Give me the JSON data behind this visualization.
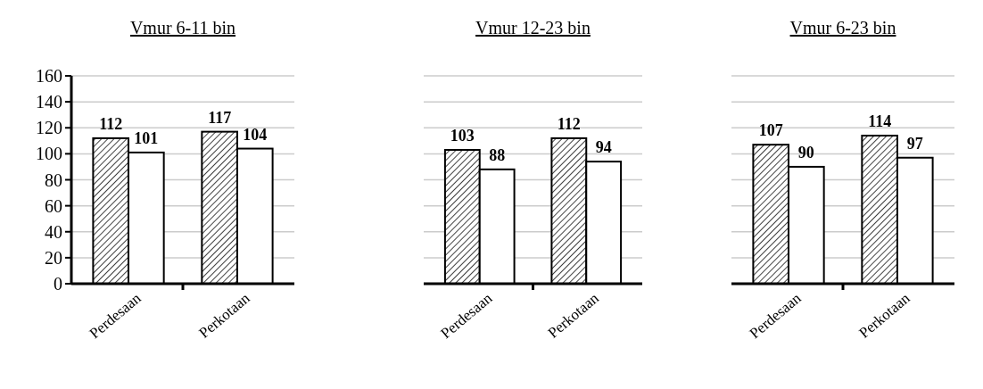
{
  "chart_data": [
    {
      "type": "bar",
      "title": "Vmur 6-11 bin",
      "categories": [
        "Perdesaan",
        "Perkotaan"
      ],
      "series": [
        {
          "color": "#000000",
          "values": [
            112,
            117
          ]
        },
        {
          "color": "#ffffff",
          "values": [
            101,
            104
          ]
        }
      ],
      "ylim": [
        0,
        160
      ],
      "yticks": [
        0,
        20,
        40,
        60,
        80,
        100,
        120,
        140,
        160
      ],
      "grid": "y",
      "data_labels": true
    },
    {
      "type": "bar",
      "title": "Vmur 12-23 bin",
      "categories": [
        "Perdesaan",
        "Perkotaan"
      ],
      "series": [
        {
          "color": "#000000",
          "values": [
            103,
            112
          ]
        },
        {
          "color": "#ffffff",
          "values": [
            88,
            94
          ]
        }
      ],
      "ylim": [
        0,
        160
      ],
      "yticks": [
        0,
        20,
        40,
        60,
        80,
        100,
        120,
        140,
        160
      ],
      "grid": "y",
      "data_labels": true,
      "tick_labels": "x"
    },
    {
      "type": "bar",
      "title": "Vmur 6-23 bin",
      "categories": [
        "Perdesaan",
        "Perkotaan"
      ],
      "series": [
        {
          "color": "#000000",
          "values": [
            107,
            114
          ]
        },
        {
          "color": "#ffffff",
          "values": [
            90,
            97
          ]
        }
      ],
      "ylim": [
        0,
        160
      ],
      "yticks": [
        0,
        20,
        40,
        60,
        80,
        100,
        120,
        140,
        160
      ],
      "grid": "y",
      "data_labels": true,
      "tick_labels": "x"
    }
  ]
}
